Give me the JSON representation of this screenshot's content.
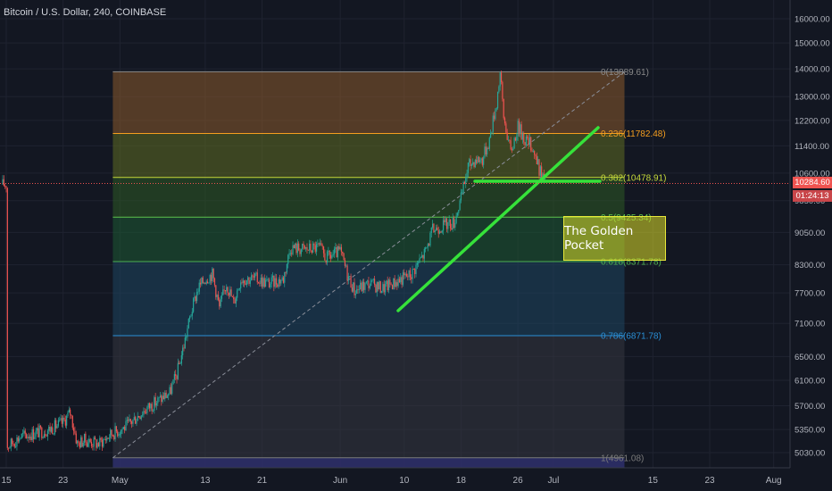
{
  "header": {
    "title": "Bitcoin / U.S. Dollar, 240, COINBASE"
  },
  "price_axis": {
    "ticks": [
      {
        "value": 16000,
        "label": "16000.00"
      },
      {
        "value": 15000,
        "label": "15000.00"
      },
      {
        "value": 14000,
        "label": "14000.00"
      },
      {
        "value": 13000,
        "label": "13000.00"
      },
      {
        "value": 12200,
        "label": "12200.00"
      },
      {
        "value": 11400,
        "label": "11400.00"
      },
      {
        "value": 10600,
        "label": "10600.00"
      },
      {
        "value": 9850,
        "label": "9850.00"
      },
      {
        "value": 9050,
        "label": "9050.00"
      },
      {
        "value": 8300,
        "label": "8300.00"
      },
      {
        "value": 7700,
        "label": "7700.00"
      },
      {
        "value": 7100,
        "label": "7100.00"
      },
      {
        "value": 6500,
        "label": "6500.00"
      },
      {
        "value": 6100,
        "label": "6100.00"
      },
      {
        "value": 5700,
        "label": "5700.00"
      },
      {
        "value": 5350,
        "label": "5350.00"
      },
      {
        "value": 5030,
        "label": "5030.00"
      }
    ],
    "last_price": "10284.60",
    "countdown": "01:24:13"
  },
  "time_axis": {
    "ticks": [
      {
        "day": 15,
        "label": "15"
      },
      {
        "day": 23,
        "label": "23"
      },
      {
        "day": 31,
        "label": "May"
      },
      {
        "day": 43,
        "label": "13"
      },
      {
        "day": 51,
        "label": "21"
      },
      {
        "day": 62,
        "label": "Jun"
      },
      {
        "day": 71,
        "label": "10"
      },
      {
        "day": 79,
        "label": "18"
      },
      {
        "day": 87,
        "label": "26"
      },
      {
        "day": 92,
        "label": "Jul"
      },
      {
        "day": 106,
        "label": "15"
      },
      {
        "day": 114,
        "label": "23"
      },
      {
        "day": 123,
        "label": "Aug"
      }
    ]
  },
  "fibonacci": {
    "start_day": 30,
    "end_day": 102,
    "levels": [
      {
        "ratio": 0,
        "price": 13889.61,
        "label": "0(13889.61)",
        "color": "#8a8a8a",
        "fill": "#8b5a2b"
      },
      {
        "ratio": 0.236,
        "price": 11782.48,
        "label": "0.236(11782.48)",
        "color": "#f59e1f",
        "fill": "#5f6b22"
      },
      {
        "ratio": 0.382,
        "price": 10478.91,
        "label": "0.382(10478.91)",
        "color": "#c6d93a",
        "fill": "#2e5a24"
      },
      {
        "ratio": 0.5,
        "price": 9425.34,
        "label": "0.5(9425.34)",
        "color": "#5cc34d",
        "fill": "#1e5a33"
      },
      {
        "ratio": 0.618,
        "price": 8371.78,
        "label": "0.618(8371.78)",
        "color": "#4caf50",
        "fill": "#1d4560"
      },
      {
        "ratio": 0.786,
        "price": 6871.78,
        "label": "0.786(6871.78)",
        "color": "#2a8fd6",
        "fill": "#34363f"
      },
      {
        "ratio": 1,
        "price": 4961.08,
        "label": "1(4961.08)",
        "color": "#7a7a7a",
        "fill": "#2d2f68"
      }
    ]
  },
  "annotation": {
    "text": "The Golden Pocket"
  },
  "colors": {
    "up": "#26a69a",
    "down": "#ef5350",
    "trendline": "#36e23a",
    "background": "#131722",
    "grid": "#1f2330"
  },
  "chart_data": {
    "type": "candlestick",
    "title": "Bitcoin / U.S. Dollar, 240, COINBASE",
    "x_unit": "day (Apr 15 2019 = 15)",
    "ylim": [
      4850,
      16700
    ],
    "y_scale": "log",
    "series": [
      {
        "name": "BTCUSD",
        "points": [
          {
            "day": 15,
            "close": 5100
          },
          {
            "day": 17,
            "close": 5250
          },
          {
            "day": 19,
            "close": 5300
          },
          {
            "day": 21,
            "close": 5350
          },
          {
            "day": 23,
            "close": 5450
          },
          {
            "day": 24,
            "close": 5600
          },
          {
            "day": 25,
            "close": 5150
          },
          {
            "day": 26,
            "close": 5200
          },
          {
            "day": 28,
            "close": 5150
          },
          {
            "day": 30,
            "close": 5300
          },
          {
            "day": 32,
            "close": 5400
          },
          {
            "day": 34,
            "close": 5600
          },
          {
            "day": 36,
            "close": 5750
          },
          {
            "day": 38,
            "close": 5900
          },
          {
            "day": 39,
            "close": 6200
          },
          {
            "day": 40,
            "close": 6700
          },
          {
            "day": 41,
            "close": 7300
          },
          {
            "day": 42,
            "close": 7800
          },
          {
            "day": 43,
            "close": 8000
          },
          {
            "day": 44,
            "close": 8100
          },
          {
            "day": 45,
            "close": 7400
          },
          {
            "day": 46,
            "close": 7900
          },
          {
            "day": 47,
            "close": 7500
          },
          {
            "day": 48,
            "close": 8000
          },
          {
            "day": 50,
            "close": 8000
          },
          {
            "day": 52,
            "close": 7900
          },
          {
            "day": 54,
            "close": 8000
          },
          {
            "day": 55,
            "close": 8700
          },
          {
            "day": 57,
            "close": 8650
          },
          {
            "day": 59,
            "close": 8700
          },
          {
            "day": 60,
            "close": 8450
          },
          {
            "day": 62,
            "close": 8600
          },
          {
            "day": 63,
            "close": 8100
          },
          {
            "day": 64,
            "close": 7750
          },
          {
            "day": 66,
            "close": 7900
          },
          {
            "day": 68,
            "close": 7800
          },
          {
            "day": 70,
            "close": 7950
          },
          {
            "day": 72,
            "close": 8100
          },
          {
            "day": 74,
            "close": 8600
          },
          {
            "day": 75,
            "close": 9100
          },
          {
            "day": 76,
            "close": 9200
          },
          {
            "day": 78,
            "close": 9300
          },
          {
            "day": 79,
            "close": 9900
          },
          {
            "day": 80,
            "close": 10800
          },
          {
            "day": 81,
            "close": 11000
          },
          {
            "day": 82,
            "close": 11000
          },
          {
            "day": 83,
            "close": 11600
          },
          {
            "day": 84,
            "close": 12800
          },
          {
            "day": 84.5,
            "close": 13850
          },
          {
            "day": 85,
            "close": 12300
          },
          {
            "day": 86,
            "close": 11200
          },
          {
            "day": 87,
            "close": 12000
          },
          {
            "day": 88,
            "close": 11600
          },
          {
            "day": 89,
            "close": 11400
          },
          {
            "day": 90,
            "close": 10700
          },
          {
            "day": 91,
            "close": 10284.6
          }
        ]
      }
    ]
  }
}
